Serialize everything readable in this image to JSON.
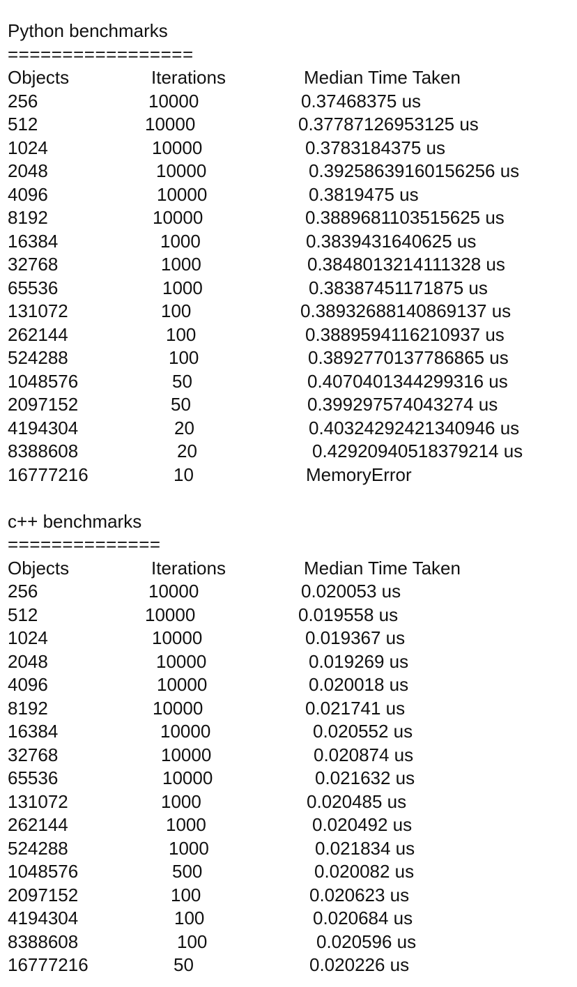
{
  "python": {
    "title": "Python benchmarks",
    "rule": "=================",
    "headers": [
      "Objects",
      "Iterations",
      "Median Time Taken"
    ],
    "rows": [
      [
        "256",
        "10000",
        "0.37468375 us"
      ],
      [
        "512",
        "10000",
        "0.3778712695312 5 us"
      ],
      [
        "1024",
        "10000",
        "0.3783184375 us"
      ],
      [
        "2048",
        "10000",
        "0.39258639160156256 us"
      ],
      [
        "4096",
        "10000",
        "0.3819475 us"
      ],
      [
        "8192",
        "10000",
        "0.3889681103515625 us"
      ],
      [
        "16384",
        "1000",
        "0.3839431640625 us"
      ],
      [
        "32768",
        "1000",
        "0.3848013214111328 us"
      ],
      [
        "65536",
        "1000",
        "0.38387451171875 us"
      ],
      [
        "131072",
        "100",
        "0.38932688140869137 us"
      ],
      [
        "262144",
        "100",
        "0.3889594116210937 us"
      ],
      [
        "524288",
        "100",
        "0.3892770137786865 us"
      ],
      [
        "1048576",
        "50",
        "0.4070401344299316 us"
      ],
      [
        "2097152",
        "50",
        "0.399297574043274 us"
      ],
      [
        "4194304",
        "20",
        "0.40324292421340946 us"
      ],
      [
        "8388608",
        "20",
        "0.42920940518379214 us"
      ],
      [
        "16777216",
        "10",
        "MemoryError"
      ]
    ]
  },
  "cpp": {
    "title": "c++ benchmarks",
    "rule": "==============",
    "headers": [
      "Objects",
      "Iterations",
      "Median Time Taken"
    ],
    "rows": [
      [
        "256",
        "10000",
        "0.020053 us"
      ],
      [
        "512",
        "10000",
        "0.019558 us"
      ],
      [
        "1024",
        "10000",
        "0.019367 us"
      ],
      [
        "2048",
        "10000",
        "0.019269 us"
      ],
      [
        "4096",
        "10000",
        "0.020018 us"
      ],
      [
        "8192",
        "10000",
        "0.021741 us"
      ],
      [
        "16384",
        "10000",
        "0.020552 us"
      ],
      [
        "32768",
        "10000",
        "0.020874 us"
      ],
      [
        "65536",
        "10000",
        "0.021632 us"
      ],
      [
        "131072",
        "1000",
        "0.020485 us"
      ],
      [
        "262144",
        "1000",
        "0.020492 us"
      ],
      [
        "524288",
        "1000",
        "0.021834 us"
      ],
      [
        "1048576",
        "500",
        "0.020082 us"
      ],
      [
        "2097152",
        "100",
        "0.020623 us"
      ],
      [
        "4194304",
        "100",
        "0.020684 us"
      ],
      [
        "8388608",
        "100",
        "0.020596 us"
      ],
      [
        "16777216",
        "50",
        "0.020226 us"
      ]
    ]
  }
}
